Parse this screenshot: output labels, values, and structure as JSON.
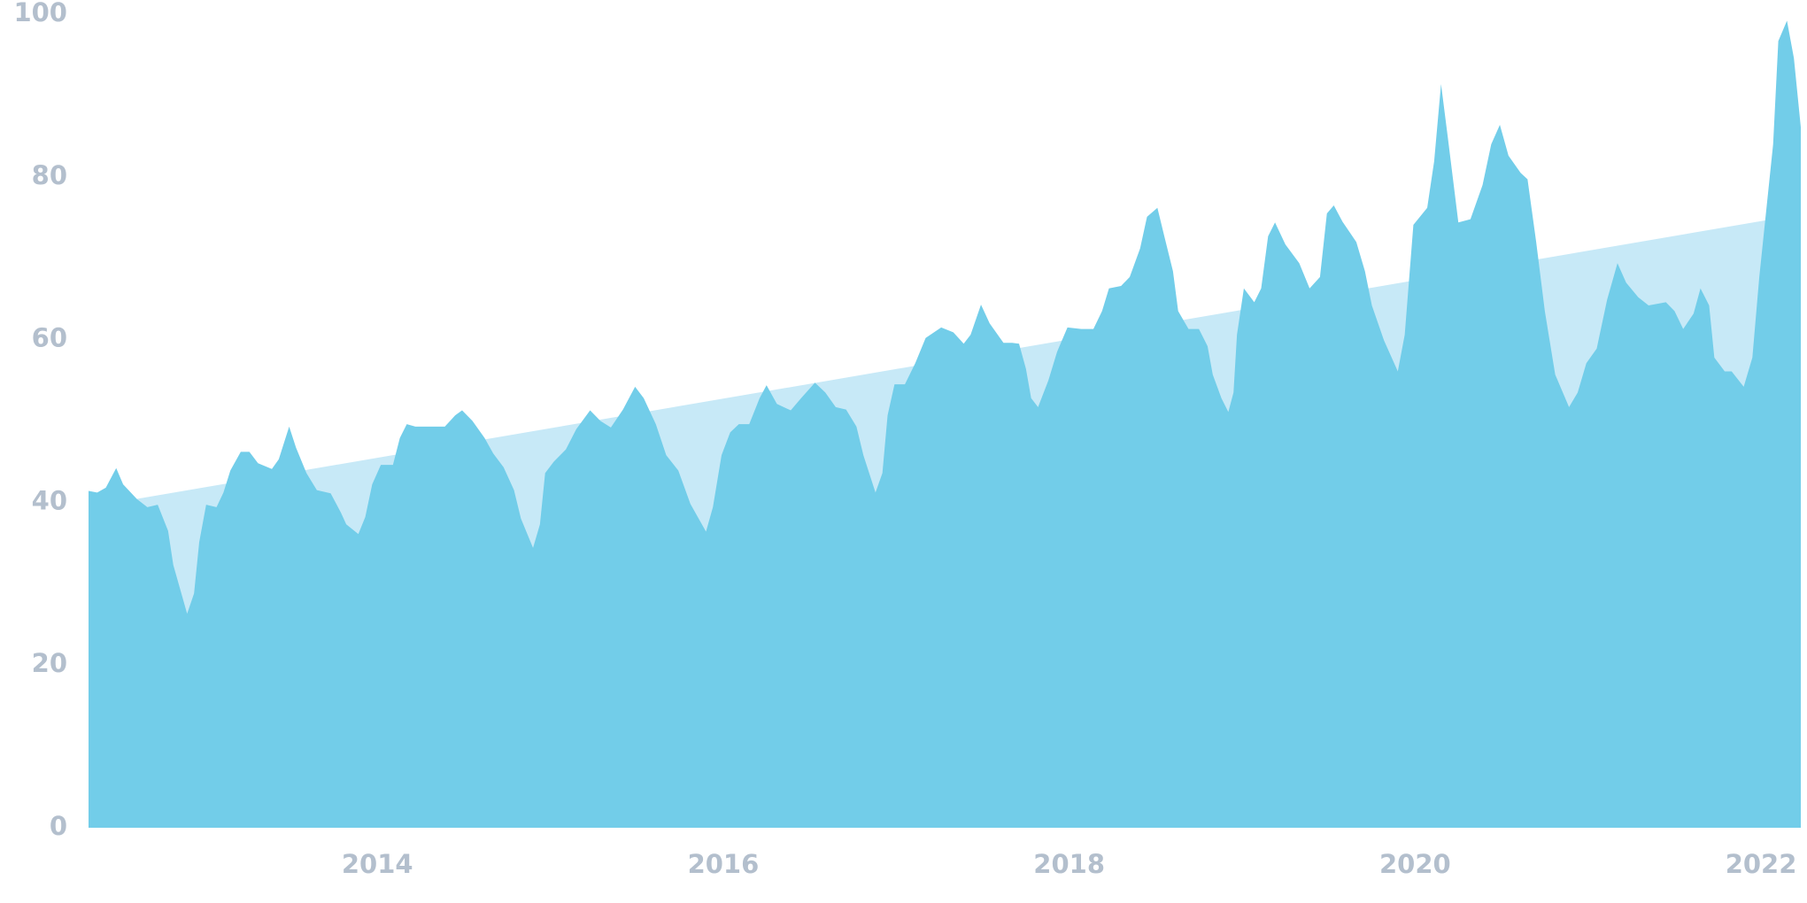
{
  "chart_data": {
    "type": "area",
    "x": [
      2012.33,
      2012.38,
      2012.43,
      2012.49,
      2012.53,
      2012.61,
      2012.67,
      2012.73,
      2012.79,
      2012.82,
      2012.9,
      2012.94,
      2012.97,
      2013.01,
      2013.07,
      2013.11,
      2013.15,
      2013.21,
      2013.26,
      2013.31,
      2013.39,
      2013.43,
      2013.49,
      2013.53,
      2013.59,
      2013.65,
      2013.73,
      2013.79,
      2013.82,
      2013.89,
      2013.93,
      2013.97,
      2014.02,
      2014.09,
      2014.13,
      2014.17,
      2014.22,
      2014.32,
      2014.39,
      2014.45,
      2014.49,
      2014.55,
      2014.62,
      2014.67,
      2014.73,
      2014.79,
      2014.83,
      2014.9,
      2014.94,
      2014.97,
      2015.02,
      2015.09,
      2015.15,
      2015.23,
      2015.29,
      2015.35,
      2015.42,
      2015.49,
      2015.54,
      2015.61,
      2015.67,
      2015.74,
      2015.81,
      2015.9,
      2015.94,
      2015.99,
      2016.04,
      2016.09,
      2016.15,
      2016.21,
      2016.25,
      2016.31,
      2016.39,
      2016.45,
      2016.53,
      2016.59,
      2016.65,
      2016.71,
      2016.77,
      2016.81,
      2016.88,
      2016.92,
      2016.95,
      2016.99,
      2017.05,
      2017.11,
      2017.17,
      2017.26,
      2017.33,
      2017.39,
      2017.43,
      2017.49,
      2017.54,
      2017.62,
      2017.67,
      2017.71,
      2017.75,
      2017.78,
      2017.82,
      2017.88,
      2017.93,
      2017.99,
      2018.07,
      2018.14,
      2018.19,
      2018.23,
      2018.3,
      2018.35,
      2018.41,
      2018.45,
      2018.51,
      2018.55,
      2018.6,
      2018.63,
      2018.69,
      2018.75,
      2018.8,
      2018.83,
      2018.88,
      2018.92,
      2018.95,
      2018.97,
      2019.01,
      2019.07,
      2019.11,
      2019.15,
      2019.19,
      2019.25,
      2019.33,
      2019.39,
      2019.45,
      2019.49,
      2019.53,
      2019.58,
      2019.66,
      2019.71,
      2019.75,
      2019.82,
      2019.9,
      2019.94,
      2019.99,
      2020.07,
      2020.11,
      2020.15,
      2020.19,
      2020.25,
      2020.32,
      2020.39,
      2020.44,
      2020.49,
      2020.54,
      2020.61,
      2020.65,
      2020.7,
      2020.75,
      2020.81,
      2020.89,
      2020.94,
      2020.99,
      2021.05,
      2021.11,
      2021.17,
      2021.22,
      2021.29,
      2021.35,
      2021.45,
      2021.5,
      2021.55,
      2021.61,
      2021.65,
      2021.7,
      2021.73,
      2021.79,
      2021.83,
      2021.9,
      2021.95,
      2021.99,
      2022.07,
      2022.1,
      2022.15,
      2022.19,
      2022.23
    ],
    "series": [
      {
        "color": "#72cde9",
        "values": [
          41.4,
          41.2,
          41.8,
          44.2,
          42.2,
          40.4,
          39.4,
          39.7,
          36.5,
          32.3,
          26.3,
          28.8,
          35.1,
          39.7,
          39.4,
          41.2,
          43.9,
          46.2,
          46.2,
          44.8,
          44.1,
          45.3,
          49.3,
          46.7,
          43.6,
          41.5,
          41.1,
          38.7,
          37.3,
          36.1,
          38.2,
          42.2,
          44.6,
          44.6,
          47.9,
          49.6,
          49.3,
          49.3,
          49.3,
          50.7,
          51.3,
          50.0,
          47.9,
          46.0,
          44.3,
          41.5,
          38.0,
          34.4,
          37.3,
          43.6,
          45.0,
          46.5,
          49.0,
          51.3,
          50.0,
          49.2,
          51.4,
          54.2,
          52.8,
          49.6,
          45.8,
          43.9,
          39.8,
          36.4,
          39.4,
          45.8,
          48.6,
          49.6,
          49.6,
          52.8,
          54.4,
          52.1,
          51.3,
          52.8,
          54.7,
          53.5,
          51.7,
          51.4,
          49.3,
          45.8,
          41.2,
          43.6,
          50.7,
          54.5,
          54.5,
          57.1,
          60.2,
          61.5,
          60.9,
          59.5,
          60.6,
          64.3,
          62.0,
          59.6,
          59.6,
          59.5,
          56.4,
          52.8,
          51.7,
          55.0,
          58.5,
          61.5,
          61.3,
          61.3,
          63.5,
          66.3,
          66.6,
          67.7,
          71.2,
          75.1,
          76.2,
          72.7,
          68.4,
          63.5,
          61.3,
          61.3,
          59.2,
          55.7,
          52.8,
          51.1,
          53.5,
          60.6,
          66.3,
          64.6,
          66.3,
          72.7,
          74.4,
          71.7,
          69.4,
          66.3,
          67.7,
          75.5,
          76.5,
          74.5,
          72.0,
          68.4,
          64.2,
          59.9,
          56.1,
          60.6,
          74.1,
          76.2,
          81.9,
          91.4,
          84.7,
          74.4,
          74.8,
          79.0,
          84.0,
          86.4,
          82.6,
          80.5,
          79.7,
          72.0,
          63.5,
          55.7,
          51.7,
          53.5,
          57.1,
          58.9,
          64.9,
          69.4,
          67.0,
          65.2,
          64.2,
          64.6,
          63.5,
          61.3,
          63.2,
          66.3,
          64.2,
          57.8,
          56.1,
          56.1,
          54.2,
          57.8,
          67.7,
          84.0,
          96.7,
          99.2,
          94.6,
          86.1
        ]
      },
      {
        "color": "#c7e9f7",
        "x": [
          2012.33,
          2022.23
        ],
        "values": [
          39.4,
          75.4
        ]
      }
    ],
    "xlim": [
      2012.33,
      2022.23
    ],
    "xticks": [
      2014,
      2016,
      2018,
      2020,
      2022
    ],
    "ylim": [
      0,
      100
    ],
    "yticks": [
      0,
      20,
      40,
      60,
      80,
      100
    ]
  }
}
